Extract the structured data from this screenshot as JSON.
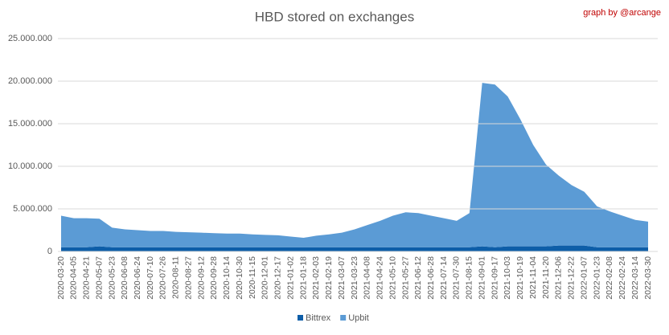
{
  "chart_data": {
    "type": "stacked_area",
    "title": "HBD stored on exchanges",
    "annotation": "graph by @arcange",
    "categories": [
      "2020-03-20",
      "2020-04-05",
      "2020-04-21",
      "2020-05-07",
      "2020-05-23",
      "2020-06-08",
      "2020-06-24",
      "2020-07-10",
      "2020-07-26",
      "2020-08-11",
      "2020-08-27",
      "2020-09-12",
      "2020-09-28",
      "2020-10-14",
      "2020-10-30",
      "2020-11-15",
      "2020-12-01",
      "2020-12-17",
      "2021-01-02",
      "2021-01-18",
      "2021-02-03",
      "2021-02-19",
      "2021-03-07",
      "2021-03-23",
      "2021-04-08",
      "2021-04-24",
      "2021-05-10",
      "2021-05-27",
      "2021-06-12",
      "2021-06-28",
      "2021-07-14",
      "2021-07-30",
      "2021-08-15",
      "2021-09-01",
      "2021-09-17",
      "2021-10-03",
      "2021-10-19",
      "2021-11-04",
      "2021-11-20",
      "2021-12-06",
      "2021-12-22",
      "2022-01-07",
      "2022-01-23",
      "2022-02-08",
      "2022-02-24",
      "2022-03-14",
      "2022-03-30"
    ],
    "series": [
      {
        "name": "Bittrex",
        "color": "#0e5ea8",
        "values": [
          500000,
          500000,
          500000,
          600000,
          500000,
          500000,
          500000,
          500000,
          500000,
          500000,
          500000,
          500000,
          500000,
          500000,
          500000,
          500000,
          500000,
          500000,
          500000,
          500000,
          500000,
          500000,
          500000,
          500000,
          500000,
          500000,
          500000,
          500000,
          500000,
          500000,
          500000,
          500000,
          500000,
          600000,
          500000,
          600000,
          600000,
          600000,
          600000,
          700000,
          700000,
          700000,
          500000,
          500000,
          500000,
          500000,
          500000
        ]
      },
      {
        "name": "Upbit",
        "color": "#5b9bd5",
        "values": [
          3700000,
          3400000,
          3400000,
          3250000,
          2300000,
          2100000,
          2000000,
          1900000,
          1900000,
          1800000,
          1750000,
          1700000,
          1650000,
          1600000,
          1600000,
          1500000,
          1450000,
          1400000,
          1250000,
          1100000,
          1350000,
          1500000,
          1700000,
          2100000,
          2600000,
          3100000,
          3700000,
          4100000,
          4000000,
          3700000,
          3400000,
          3100000,
          4000000,
          19200000,
          19100000,
          17600000,
          14900000,
          11900000,
          9600000,
          8200000,
          7100000,
          6300000,
          4800000,
          4200000,
          3700000,
          3200000,
          3000000
        ]
      }
    ],
    "ylim": [
      0,
      25000000
    ],
    "yticks": [
      0,
      {
        "value": 5000000,
        "label": "5.000.000"
      },
      {
        "value": 10000000,
        "label": "10.000.000"
      },
      {
        "value": 15000000,
        "label": "15.000.000"
      },
      {
        "value": 20000000,
        "label": "20.000.000"
      },
      {
        "value": 25000000,
        "label": "25.000.000"
      }
    ],
    "grid": true
  }
}
